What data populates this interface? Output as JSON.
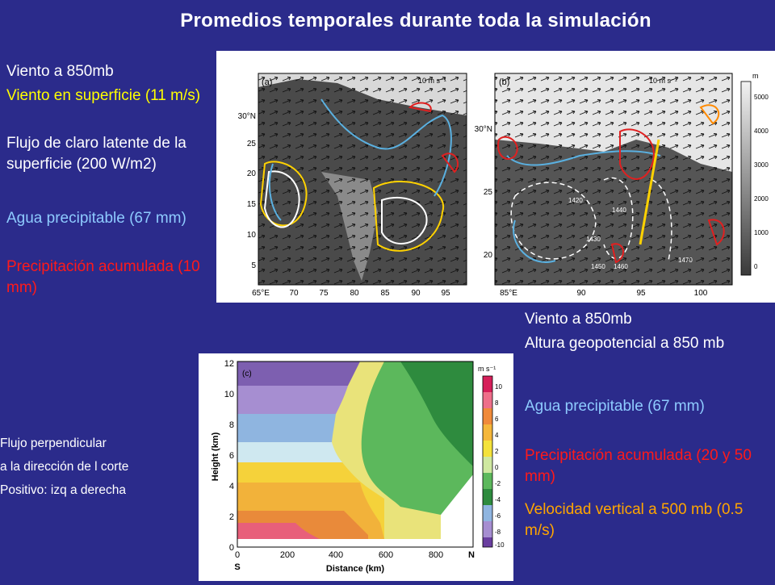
{
  "slide": {
    "title": "Promedios temporales durante toda la simulación",
    "left_legend": {
      "l1": "Viento a 850mb",
      "l2": "Viento en superficie (11 m/s)",
      "l3": "Flujo de claro latente de la superficie (200 W/m2)",
      "l4": "Agua precipitable (67 mm)",
      "l5": "Precipitación acumulada (10 mm)"
    },
    "right_legend": {
      "l1": "Viento a 850mb",
      "l2": "Altura geopotencial a 850 mb",
      "l3": "Agua precipitable (67 mm)",
      "l4": "Precipitación acumulada (20 y 50 mm)",
      "l5": "Velocidad vertical a 500 mb (0.5 m/s)"
    },
    "cross_section_note": {
      "l1": "Flujo perpendicular",
      "l2": "a la dirección de l corte",
      "l3": "Positivo: izq a derecha"
    }
  },
  "map_a": {
    "label": "(a)",
    "scale": "10 m s⁻¹",
    "lat_ticks": [
      "30°N",
      "25",
      "20",
      "15",
      "10",
      "5"
    ],
    "lon_ticks": [
      "65°E",
      "70",
      "75",
      "80",
      "85",
      "90",
      "95"
    ]
  },
  "map_b": {
    "label": "(b)",
    "scale": "10 m s⁻¹",
    "lat_ticks": [
      "30°N",
      "25",
      "20"
    ],
    "lon_ticks": [
      "85°E",
      "90",
      "95",
      "100"
    ],
    "contours": [
      "1420",
      "1440",
      "1430",
      "1450",
      "1460",
      "1470"
    ],
    "colorbar_unit": "m",
    "colorbar_ticks": [
      "5000",
      "4000",
      "3000",
      "2000",
      "1000",
      "0"
    ]
  },
  "panel_c": {
    "label": "(c)",
    "ylabel": "Height (km)",
    "xlabel": "Distance (km)",
    "y_ticks": [
      "12",
      "10",
      "8",
      "6",
      "4",
      "2",
      "0"
    ],
    "x_ticks": [
      "0",
      "200",
      "400",
      "600",
      "800"
    ],
    "x_ends": {
      "left": "S",
      "right": "N"
    },
    "colorbar_unit": "m s⁻¹",
    "colorbar_ticks": [
      "10",
      "8",
      "6",
      "4",
      "2",
      "0",
      "-2",
      "-4",
      "-6",
      "-8",
      "-10"
    ]
  },
  "colors": {
    "background": "#2b2b8b",
    "title": "#ffffff",
    "surface_wind": "#ffff00",
    "pw": "#8ecbff",
    "precip": "#ff1a1a",
    "w500": "#ffa500"
  }
}
